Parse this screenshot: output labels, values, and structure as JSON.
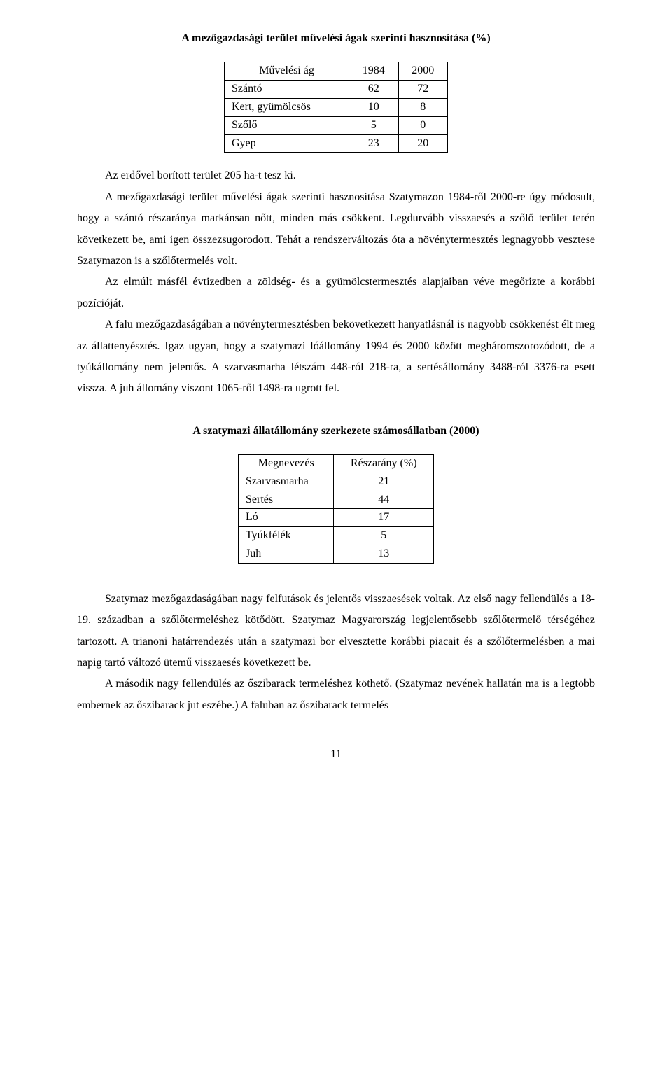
{
  "title1": "A mezőgazdasági terület művelési ágak szerinti hasznosítása (%)",
  "table1": {
    "type": "table",
    "columns": [
      "Művelési ág",
      "1984",
      "2000"
    ],
    "rows": [
      [
        "Szántó",
        "62",
        "72"
      ],
      [
        "Kert, gyümölcsös",
        "10",
        "8"
      ],
      [
        "Szőlő",
        "5",
        "0"
      ],
      [
        "Gyep",
        "23",
        "20"
      ]
    ],
    "border_color": "#000000",
    "background_color": "#ffffff"
  },
  "para1": "Az erdővel borított terület 205 ha-t tesz ki.",
  "para2": "A mezőgazdasági terület művelési ágak szerinti hasznosítása Szatymazon 1984-ről 2000-re úgy módosult, hogy a szántó részaránya markánsan nőtt, minden más csökkent. Legdurvább visszaesés a szőlő terület terén következett be, ami igen összezsugorodott. Tehát a rendszerváltozás óta a növénytermesztés legnagyobb vesztese Szatymazon is a szőlőtermelés volt.",
  "para3": "Az elmúlt másfél évtizedben a zöldség- és a gyümölcstermesztés alapjaiban véve megőrizte a korábbi pozícióját.",
  "para4": "A falu mezőgazdaságában a növénytermesztésben bekövetkezett hanyatlásnál is nagyobb csökkenést élt meg az állattenyésztés. Igaz ugyan, hogy a szatymazi lóállomány 1994 és 2000 között megháromszorozódott, de a tyúkállomány nem jelentős. A szarvasmarha létszám 448-ról 218-ra, a sertésállomány 3488-ról 3376-ra esett vissza. A juh állomány viszont 1065-ről 1498-ra ugrott fel.",
  "title2": "A szatymazi állatállomány szerkezete számosállatban (2000)",
  "table2": {
    "type": "table",
    "columns": [
      "Megnevezés",
      "Részarány (%)"
    ],
    "rows": [
      [
        "Szarvasmarha",
        "21"
      ],
      [
        "Sertés",
        "44"
      ],
      [
        "Ló",
        "17"
      ],
      [
        "Tyúkfélék",
        "5"
      ],
      [
        "Juh",
        "13"
      ]
    ],
    "border_color": "#000000",
    "background_color": "#ffffff"
  },
  "para5": "Szatymaz mezőgazdaságában nagy felfutások és jelentős visszaesések voltak. Az első nagy fellendülés a 18-19. században a szőlőtermeléshez kötődött. Szatymaz Magyarország legjelentősebb szőlőtermelő térségéhez tartozott. A trianoni határrendezés után a szatymazi bor elvesztette korábbi piacait és a szőlőtermelésben a mai napig tartó változó ütemű visszaesés következett be.",
  "para6": "A második nagy fellendülés az őszibarack termeléshez köthető. (Szatymaz nevének hallatán ma is a legtöbb embernek az őszibarack jut eszébe.) A faluban az őszibarack termelés",
  "page_number": "11",
  "typography": {
    "body_font": "Times New Roman",
    "body_fontsize_pt": 12,
    "title_weight": "bold",
    "text_color": "#000000",
    "background_color": "#ffffff",
    "line_height": 1.9
  }
}
